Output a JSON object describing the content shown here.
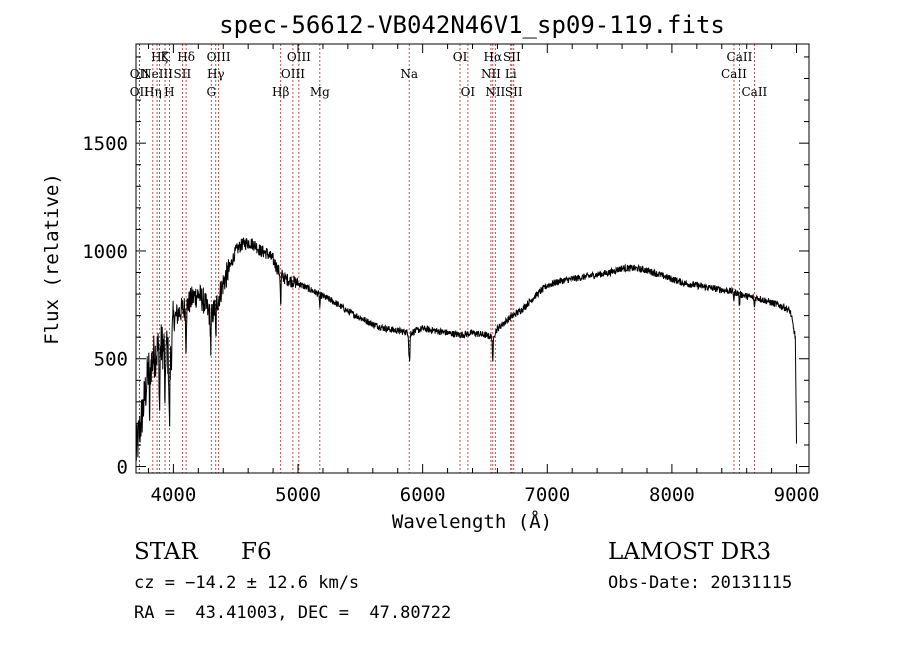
{
  "chart_data": {
    "type": "line",
    "title": "spec-56612-VB042N46V1_sp09-119.fits",
    "xlabel": "Wavelength (Å)",
    "ylabel": "Flux (relative)",
    "xlim": [
      3700,
      9100
    ],
    "ylim": [
      -30,
      1960
    ],
    "xticks": [
      4000,
      5000,
      6000,
      7000,
      8000,
      9000
    ],
    "xtick_labels": [
      "4000",
      "5000",
      "6000",
      "7000",
      "8000",
      "9000"
    ],
    "yticks": [
      0,
      500,
      1000,
      1500
    ],
    "ytick_labels": [
      "0",
      "500",
      "1000",
      "1500"
    ],
    "continuum": {
      "x": [
        3700,
        3760,
        3800,
        3850,
        3900,
        3950,
        3970,
        4000,
        4050,
        4100,
        4150,
        4200,
        4250,
        4300,
        4350,
        4400,
        4450,
        4500,
        4550,
        4600,
        4650,
        4700,
        4750,
        4800,
        4850,
        4900,
        4950,
        5000,
        5100,
        5200,
        5300,
        5400,
        5500,
        5600,
        5700,
        5800,
        5900,
        6000,
        6100,
        6200,
        6300,
        6400,
        6500,
        6560,
        6600,
        6700,
        6800,
        6900,
        7000,
        7100,
        7200,
        7300,
        7400,
        7500,
        7600,
        7700,
        7800,
        7900,
        8000,
        8100,
        8200,
        8300,
        8400,
        8500,
        8600,
        8700,
        8800,
        8900,
        8950,
        8990,
        9000
      ],
      "y": [
        60,
        280,
        450,
        520,
        560,
        550,
        430,
        680,
        720,
        740,
        780,
        800,
        760,
        690,
        760,
        850,
        920,
        1000,
        1030,
        1040,
        1030,
        1000,
        990,
        960,
        900,
        870,
        860,
        850,
        820,
        790,
        760,
        720,
        690,
        660,
        640,
        630,
        620,
        640,
        630,
        620,
        610,
        620,
        610,
        600,
        640,
        690,
        730,
        790,
        840,
        860,
        870,
        880,
        890,
        900,
        920,
        920,
        910,
        890,
        870,
        850,
        840,
        830,
        820,
        810,
        790,
        780,
        760,
        740,
        720,
        600,
        100
      ]
    },
    "noise_amplitude": [
      {
        "from": 3700,
        "to": 4000,
        "amp": 110
      },
      {
        "from": 4000,
        "to": 4450,
        "amp": 60
      },
      {
        "from": 4450,
        "to": 5000,
        "amp": 30
      },
      {
        "from": 5000,
        "to": 9000,
        "amp": 16
      }
    ],
    "absorption_dips": [
      {
        "x": 3810,
        "depth": 260
      },
      {
        "x": 3889,
        "depth": 300
      },
      {
        "x": 3933,
        "depth": 330
      },
      {
        "x": 3968,
        "depth": 260
      },
      {
        "x": 4101,
        "depth": 180
      },
      {
        "x": 4300,
        "depth": 150
      },
      {
        "x": 4340,
        "depth": 160
      },
      {
        "x": 4861,
        "depth": 160
      },
      {
        "x": 5175,
        "depth": 60
      },
      {
        "x": 5890,
        "depth": 80
      },
      {
        "x": 5896,
        "depth": 120
      },
      {
        "x": 6563,
        "depth": 130
      },
      {
        "x": 8498,
        "depth": 40
      },
      {
        "x": 8542,
        "depth": 60
      },
      {
        "x": 8662,
        "depth": 50
      }
    ],
    "line_markers": [
      {
        "x": 3727,
        "label": "OII",
        "row": 2
      },
      {
        "x": 3727,
        "label": "OII",
        "row": 3
      },
      {
        "x": 3835,
        "label": "Hη",
        "row": 3
      },
      {
        "x": 3869,
        "label": "NeIII",
        "row": 2
      },
      {
        "x": 3889,
        "label": "Hζ",
        "row": 1
      },
      {
        "x": 3933,
        "label": "K",
        "row": 1
      },
      {
        "x": 3968,
        "label": "H",
        "row": 3
      },
      {
        "x": 4072,
        "label": "SII",
        "row": 2
      },
      {
        "x": 4102,
        "label": "Hδ",
        "row": 1
      },
      {
        "x": 4304,
        "label": "G",
        "row": 3
      },
      {
        "x": 4340,
        "label": "Hγ",
        "row": 2
      },
      {
        "x": 4363,
        "label": "OIII",
        "row": 1
      },
      {
        "x": 4861,
        "label": "Hβ",
        "row": 3
      },
      {
        "x": 4959,
        "label": "OIII",
        "row": 2
      },
      {
        "x": 5007,
        "label": "OIII",
        "row": 1
      },
      {
        "x": 5175,
        "label": "Mg",
        "row": 3
      },
      {
        "x": 5892,
        "label": "Na",
        "row": 2
      },
      {
        "x": 6300,
        "label": "OI",
        "row": 1
      },
      {
        "x": 6363,
        "label": "OI",
        "row": 3
      },
      {
        "x": 6548,
        "label": "NII",
        "row": 2
      },
      {
        "x": 6563,
        "label": "Hα",
        "row": 1
      },
      {
        "x": 6583,
        "label": "NII",
        "row": 3
      },
      {
        "x": 6707,
        "label": "Li",
        "row": 2
      },
      {
        "x": 6716,
        "label": "SII",
        "row": 1
      },
      {
        "x": 6731,
        "label": "SII",
        "row": 3
      },
      {
        "x": 8498,
        "label": "CaII",
        "row": 2
      },
      {
        "x": 8542,
        "label": "CaII",
        "row": 1
      },
      {
        "x": 8662,
        "label": "CaII",
        "row": 3
      }
    ],
    "marker_color": "#b22222",
    "line_color": "#000000"
  },
  "info": {
    "object_class": "STAR",
    "subclass": "F6",
    "survey": "LAMOST DR3",
    "redshift_text": "cz = −14.2 ± 12.6 km/s",
    "obs_date_text": "Obs-Date: 20131115",
    "coord_text": "RA =  43.41003, DEC =  47.80722"
  }
}
